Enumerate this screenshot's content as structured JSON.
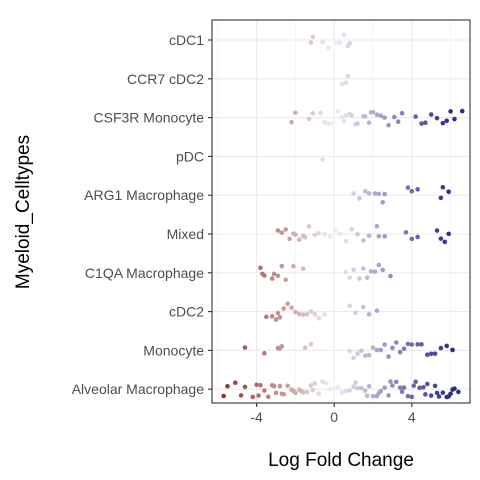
{
  "chart_data": {
    "type": "scatter",
    "title": "",
    "xlabel": "Log Fold Change",
    "ylabel": "Myeloid_Celltypes",
    "xlim": [
      -6.3,
      7.0
    ],
    "x_ticks": [
      -4,
      0,
      4
    ],
    "x_tick_labels": [
      "-4",
      "0",
      "4"
    ],
    "grid": true,
    "legend": "none",
    "color_scale": {
      "low": "#8b2a22",
      "mid": "#f4eef6",
      "high": "#2e2a8a",
      "min": -6,
      "max": 6
    },
    "categories": [
      "cDC1",
      "CCR7 cDC2",
      "CSF3R Monocyte",
      "pDC",
      "ARG1 Macrophage",
      "Mixed",
      "C1QA Macrophage",
      "cDC2",
      "Monocyte",
      "Alveolar Macrophage"
    ],
    "series": [
      {
        "category": "cDC1",
        "x": [
          -1.2,
          -1.1,
          -0.6,
          -0.3,
          0.1,
          0.3,
          0.5,
          0.7,
          0.8
        ]
      },
      {
        "category": "CCR7 cDC2",
        "x": [
          0.4,
          0.6,
          0.7
        ]
      },
      {
        "category": "CSF3R Monocyte",
        "x": [
          -2.2,
          -2.0,
          -1.3,
          -1.1,
          -0.7,
          -0.5,
          -0.3,
          -0.1,
          0.2,
          0.4,
          0.5,
          0.6,
          0.8,
          0.9,
          1.1,
          1.2,
          1.5,
          1.6,
          1.8,
          1.9,
          2.0,
          2.2,
          2.4,
          2.6,
          2.8,
          3.1,
          3.3,
          3.5,
          4.2,
          4.5,
          4.7,
          5.0,
          5.3,
          5.6,
          5.8,
          6.0,
          6.2,
          6.6
        ]
      },
      {
        "category": "pDC",
        "x": [
          -0.6
        ]
      },
      {
        "category": "ARG1 Macrophage",
        "x": [
          1.0,
          1.3,
          1.6,
          1.8,
          2.1,
          2.3,
          2.5,
          2.6,
          3.8,
          4.0,
          4.3,
          5.5,
          5.6,
          5.9
        ]
      },
      {
        "category": "Mixed",
        "x": [
          -2.9,
          -2.7,
          -2.5,
          -2.3,
          -2.1,
          -2.0,
          -1.8,
          -1.6,
          -1.5,
          -1.3,
          -1.0,
          -0.8,
          -0.5,
          -0.2,
          0.1,
          0.3,
          0.6,
          0.9,
          1.2,
          1.5,
          1.8,
          2.2,
          2.3,
          2.6,
          3.7,
          4.0,
          4.3,
          5.3,
          5.5,
          5.7,
          5.9
        ]
      },
      {
        "category": "C1QA Macrophage",
        "x": [
          -3.8,
          -3.7,
          -3.6,
          -3.2,
          -3.1,
          -2.9,
          -2.7,
          -2.5,
          -2.1,
          -1.6,
          0.6,
          0.8,
          1.0,
          1.3,
          1.5,
          1.7,
          1.9,
          2.1,
          2.3,
          2.5,
          2.9
        ]
      },
      {
        "category": "cDC2",
        "x": [
          -3.5,
          -3.2,
          -3.0,
          -2.9,
          -2.8,
          -2.6,
          -2.4,
          -2.2,
          -2.0,
          -1.8,
          -1.6,
          -1.4,
          -1.2,
          -1.0,
          -0.8,
          -0.5,
          0.8,
          1.1,
          1.5,
          1.8,
          2.2
        ]
      },
      {
        "category": "Monocyte",
        "x": [
          -4.6,
          -3.6,
          -2.9,
          -2.8,
          -2.7,
          -1.5,
          -1.2,
          0.8,
          1.0,
          1.2,
          1.4,
          1.6,
          1.8,
          2.0,
          2.2,
          2.4,
          2.6,
          2.8,
          3.0,
          3.2,
          3.4,
          3.6,
          3.8,
          4.0,
          4.3,
          4.5,
          4.8,
          5.0,
          5.2,
          5.5,
          5.8,
          6.1
        ]
      },
      {
        "category": "Alveolar Macrophage",
        "x": [
          -5.7,
          -5.5,
          -5.1,
          -4.8,
          -4.6,
          -4.2,
          -4.0,
          -3.8,
          -3.6,
          -3.4,
          -3.2,
          -3.0,
          -2.8,
          -2.6,
          -2.4,
          -2.2,
          -2.0,
          -1.8,
          -1.6,
          -1.4,
          -1.2,
          -1.0,
          -0.8,
          -0.6,
          -0.4,
          -0.2,
          0.0,
          0.2,
          0.4,
          0.6,
          0.8,
          1.0,
          1.2,
          1.4,
          1.6,
          1.8,
          2.0,
          2.2,
          2.4,
          2.6,
          2.8,
          3.0,
          3.2,
          3.4,
          3.6,
          3.8,
          4.0,
          4.2,
          4.4,
          4.6,
          4.8,
          5.0,
          5.2,
          5.4,
          5.6,
          5.8,
          6.0,
          6.2,
          6.4,
          -3.9,
          -3.1,
          -2.7,
          -2.1,
          -1.7,
          -1.1,
          1.1,
          1.7,
          2.3,
          2.9,
          3.5,
          4.1,
          4.7,
          5.3,
          5.9,
          6.1
        ]
      }
    ]
  }
}
